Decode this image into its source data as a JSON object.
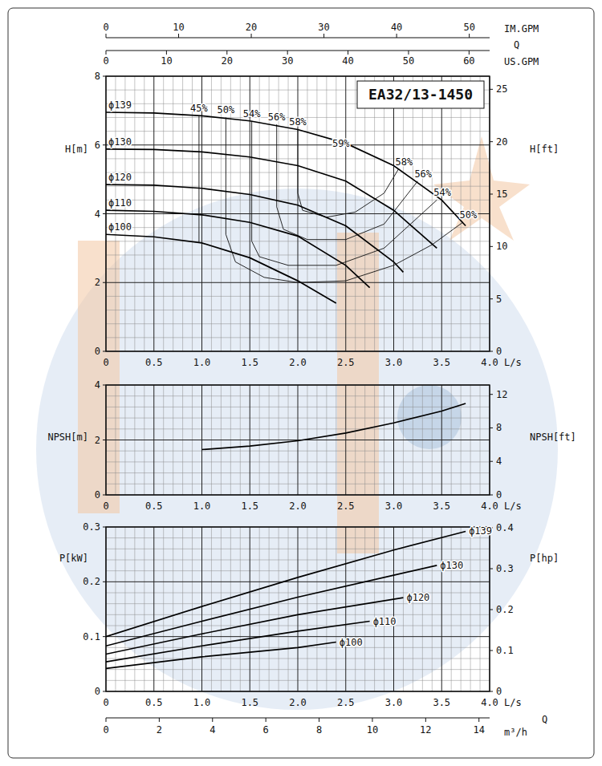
{
  "chart_data": [
    {
      "type": "line",
      "title": "EA32/13-1450",
      "y_label": "H[m]",
      "y2_label": "H[ft]",
      "x_label": "L/s",
      "q_label": "Q",
      "xlim": [
        0,
        4
      ],
      "xticks": [
        0,
        0.5,
        {
          "value": 1,
          "label": "1.0"
        },
        1.5,
        {
          "value": 2,
          "label": "2.0"
        },
        2.5,
        {
          "value": 3,
          "label": "3.0"
        },
        3.5,
        {
          "value": 4,
          "label": "4.0"
        }
      ],
      "ylim": [
        0,
        8
      ],
      "yticks": [
        0,
        2,
        4,
        6,
        8
      ],
      "y2lim": [
        0,
        26.25
      ],
      "y2ticks": [
        0,
        5,
        10,
        15,
        20,
        25
      ],
      "grid": true,
      "x2_axes": [
        {
          "label": "IM.GPM",
          "xlim": [
            0,
            52.8
          ],
          "xticks": [
            0,
            10,
            20,
            30,
            40,
            50
          ]
        },
        {
          "label": "US.GPM",
          "xlim": [
            0,
            63.4
          ],
          "xticks": [
            0,
            10,
            20,
            30,
            40,
            50,
            60
          ]
        }
      ],
      "series": [
        {
          "name": "ϕ139",
          "color": "#000000",
          "x": [
            0,
            0.5,
            1,
            1.5,
            2,
            2.5,
            3,
            3.5,
            3.75
          ],
          "values": [
            6.95,
            6.93,
            6.85,
            6.7,
            6.45,
            6.05,
            5.4,
            4.4,
            3.65
          ]
        },
        {
          "name": "ϕ130",
          "color": "#000000",
          "x": [
            0,
            0.5,
            1,
            1.5,
            2,
            2.5,
            3,
            3.45
          ],
          "values": [
            5.88,
            5.87,
            5.8,
            5.65,
            5.4,
            4.95,
            4.1,
            3.0
          ]
        },
        {
          "name": "ϕ120",
          "color": "#000000",
          "x": [
            0,
            0.5,
            1,
            1.5,
            2,
            2.5,
            3,
            3.1
          ],
          "values": [
            4.85,
            4.83,
            4.74,
            4.56,
            4.25,
            3.65,
            2.6,
            2.3
          ]
        },
        {
          "name": "ϕ110",
          "color": "#000000",
          "x": [
            0,
            0.5,
            1,
            1.5,
            2,
            2.5,
            2.75
          ],
          "values": [
            4.1,
            4.07,
            3.97,
            3.75,
            3.35,
            2.5,
            1.85
          ]
        },
        {
          "name": "ϕ100",
          "color": "#000000",
          "x": [
            0,
            0.5,
            1,
            1.5,
            2,
            2.4
          ],
          "values": [
            3.4,
            3.33,
            3.15,
            2.72,
            2.05,
            1.4
          ]
        }
      ],
      "efficiency_lines": [
        {
          "label": "45%",
          "x": [
            0.97,
            0.97
          ],
          "values": [
            6.85,
            3.16
          ]
        },
        {
          "label": "50%",
          "x": [
            1.25,
            1.25,
            1.35,
            1.65,
            2.0,
            2.5,
            3.0,
            3.4,
            3.72
          ],
          "values": [
            6.8,
            3.4,
            2.6,
            2.15,
            2.0,
            2.05,
            2.5,
            3.1,
            3.75
          ]
        },
        {
          "label": "54%",
          "x": [
            1.52,
            1.52,
            1.6,
            1.9,
            2.4,
            2.9,
            3.45
          ],
          "values": [
            6.7,
            3.2,
            2.75,
            2.5,
            2.5,
            3.0,
            4.4
          ]
        },
        {
          "label": "56%",
          "x": [
            1.78,
            1.78,
            1.85,
            2.1,
            2.5,
            2.9,
            3.25
          ],
          "values": [
            6.6,
            4.2,
            3.55,
            3.25,
            3.25,
            3.7,
            4.95
          ]
        },
        {
          "label": "58%",
          "x": [
            2.0,
            2.0,
            2.05,
            2.3,
            2.6,
            2.9,
            3.05
          ],
          "values": [
            6.45,
            4.6,
            4.1,
            3.9,
            4.05,
            4.6,
            5.3
          ]
        }
      ],
      "annotations": [
        {
          "label": "59%",
          "x": 2.45,
          "value": 6.05
        }
      ]
    },
    {
      "type": "line",
      "y_label": "NPSH[m]",
      "y2_label": "NPSH[ft]",
      "x_label": "L/s",
      "xlim": [
        0,
        4
      ],
      "xticks": [
        0,
        0.5,
        {
          "value": 1,
          "label": "1.0"
        },
        1.5,
        {
          "value": 2,
          "label": "2.0"
        },
        2.5,
        {
          "value": 3,
          "label": "3.0"
        },
        3.5,
        {
          "value": 4,
          "label": "4.0"
        }
      ],
      "ylim": [
        0,
        4
      ],
      "yticks": [
        0,
        2,
        4
      ],
      "y2lim": [
        0,
        13.12
      ],
      "y2ticks": [
        0,
        4,
        8,
        12
      ],
      "grid": true,
      "series": [
        {
          "color": "#000000",
          "x": [
            1,
            1.5,
            2,
            2.5,
            3,
            3.5,
            3.75
          ],
          "values": [
            1.65,
            1.78,
            1.97,
            2.25,
            2.62,
            3.05,
            3.33
          ]
        }
      ]
    },
    {
      "type": "line",
      "y_label": "P[kW]",
      "y2_label": "P[hp]",
      "x_label": "L/s",
      "q_label": "Q",
      "xlim": [
        0,
        4
      ],
      "xticks": [
        0,
        0.5,
        {
          "value": 1,
          "label": "1.0"
        },
        1.5,
        {
          "value": 2,
          "label": "2.0"
        },
        2.5,
        {
          "value": 3,
          "label": "3.0"
        },
        3.5,
        {
          "value": 4,
          "label": "4.0"
        }
      ],
      "ylim": [
        0,
        0.3
      ],
      "yticks": [
        0,
        0.1,
        0.2,
        0.3
      ],
      "y2lim": [
        0,
        0.402
      ],
      "y2ticks": [
        0,
        0.1,
        0.2,
        0.3,
        0.4
      ],
      "grid": true,
      "x2_axis": {
        "label": "m³/h",
        "xlim": [
          0,
          14.4
        ],
        "xticks": [
          0,
          2,
          4,
          6,
          8,
          10,
          12,
          14
        ]
      },
      "series": [
        {
          "name": "ϕ139",
          "color": "#000000",
          "x": [
            0,
            1,
            2,
            3,
            3.75
          ],
          "values": [
            0.1,
            0.155,
            0.208,
            0.258,
            0.292
          ]
        },
        {
          "name": "ϕ130",
          "color": "#000000",
          "x": [
            0,
            1,
            2,
            3,
            3.45
          ],
          "values": [
            0.083,
            0.128,
            0.172,
            0.212,
            0.23
          ]
        },
        {
          "name": "ϕ120",
          "color": "#000000",
          "x": [
            0,
            1,
            2,
            3.1
          ],
          "values": [
            0.068,
            0.105,
            0.14,
            0.171
          ]
        },
        {
          "name": "ϕ110",
          "color": "#000000",
          "x": [
            0,
            1,
            2,
            2.75
          ],
          "values": [
            0.054,
            0.083,
            0.11,
            0.128
          ]
        },
        {
          "name": "ϕ100",
          "color": "#000000",
          "x": [
            0,
            1,
            2,
            2.4
          ],
          "values": [
            0.042,
            0.063,
            0.08,
            0.09
          ]
        }
      ]
    }
  ]
}
